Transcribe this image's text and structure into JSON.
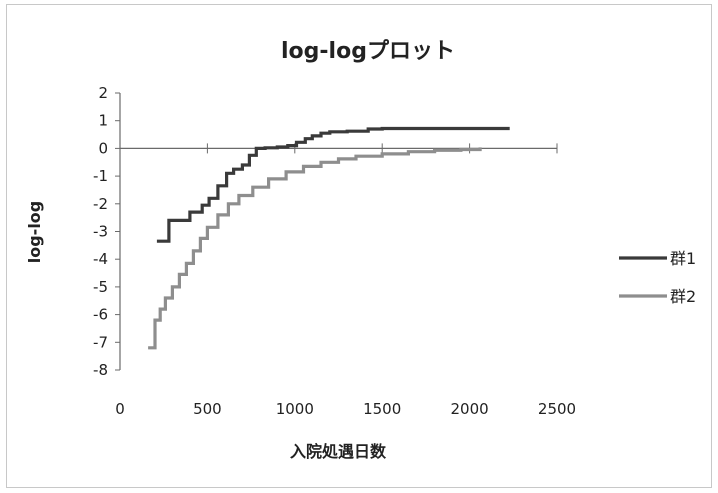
{
  "chart_data": {
    "type": "line",
    "title": "log-logプロット",
    "xlabel": "入院処遇日数",
    "ylabel": "log-log",
    "xlim": [
      0,
      2500
    ],
    "ylim": [
      -8,
      2
    ],
    "x_ticks": [
      "0",
      "500",
      "1000",
      "1500",
      "2000",
      "2500"
    ],
    "y_ticks": [
      "2",
      "1",
      "0",
      "-1",
      "-2",
      "-3",
      "-4",
      "-5",
      "-6",
      "-7",
      "-8"
    ],
    "grid": false,
    "legend_position": "right",
    "series": [
      {
        "name": "群1",
        "color": "#3a3a3a",
        "step": true,
        "x": [
          220,
          280,
          400,
          470,
          510,
          560,
          610,
          650,
          700,
          740,
          780,
          830,
          900,
          960,
          1010,
          1060,
          1100,
          1150,
          1200,
          1300,
          1420,
          1500,
          1700,
          1900,
          2220
        ],
        "y": [
          -3.35,
          -2.6,
          -2.3,
          -2.05,
          -1.8,
          -1.35,
          -0.9,
          -0.75,
          -0.6,
          -0.25,
          0.0,
          0.02,
          0.05,
          0.1,
          0.22,
          0.35,
          0.45,
          0.55,
          0.6,
          0.62,
          0.7,
          0.72,
          0.72,
          0.72,
          0.72
        ]
      },
      {
        "name": "群2",
        "color": "#8e8e8e",
        "step": true,
        "x": [
          170,
          200,
          230,
          260,
          300,
          340,
          380,
          420,
          460,
          500,
          560,
          620,
          680,
          760,
          850,
          950,
          1050,
          1150,
          1250,
          1350,
          1500,
          1650,
          1800,
          1950,
          2060
        ],
        "y": [
          -7.2,
          -6.2,
          -5.8,
          -5.4,
          -5.0,
          -4.55,
          -4.15,
          -3.7,
          -3.25,
          -2.85,
          -2.4,
          -2.0,
          -1.7,
          -1.4,
          -1.1,
          -0.85,
          -0.65,
          -0.5,
          -0.38,
          -0.28,
          -0.2,
          -0.12,
          -0.07,
          -0.04,
          -0.02
        ]
      }
    ]
  }
}
